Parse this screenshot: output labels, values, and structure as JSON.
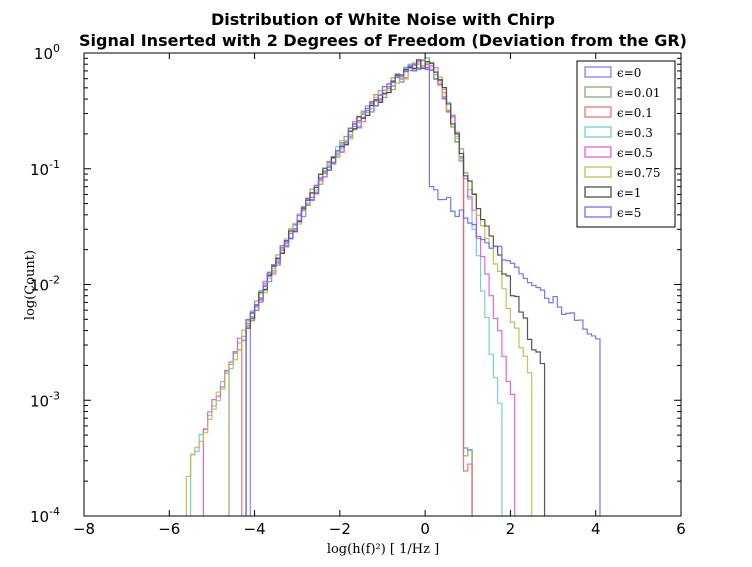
{
  "chart_data": {
    "type": "step",
    "title": [
      "Distribution of White Noise with Chirp",
      "Signal Inserted with 2 Degrees of Freedom (Deviation from the GR)"
    ],
    "xlabel": "log(h(f)²) [ 1/Hz ]",
    "ylabel": "log(Count)",
    "xlim": [
      -8,
      6
    ],
    "ylim": [
      0.0001,
      1
    ],
    "yscale": "log",
    "xticks": [
      "−8",
      "−6",
      "−4",
      "−2",
      "0",
      "2",
      "4",
      "6"
    ],
    "yticks": [
      {
        "base": "10",
        "exp": "0"
      },
      {
        "base": "10",
        "exp": "-1"
      },
      {
        "base": "10",
        "exp": "-2"
      },
      {
        "base": "10",
        "exp": "-3"
      },
      {
        "base": "10",
        "exp": "-4"
      }
    ],
    "legend_position": "top-right",
    "series": [
      {
        "name": "ϵ=0",
        "color": "#7777ee",
        "tail_end": 1.0,
        "tail_min": 0.00035,
        "left_edge": -4.1
      },
      {
        "name": "ϵ=0.01",
        "color": "#77aa66",
        "tail_end": 1.0,
        "tail_min": 0.00035,
        "left_edge": -4.6
      },
      {
        "name": "ϵ=0.1",
        "color": "#ee6666",
        "tail_end": 1.05,
        "tail_min": 0.00025,
        "left_edge": -4.3
      },
      {
        "name": "ϵ=0.3",
        "color": "#66cccc",
        "tail_end": 1.7,
        "tail_min": 0.00085,
        "left_edge": -5.5
      },
      {
        "name": "ϵ=0.5",
        "color": "#dd55dd",
        "tail_end": 2.0,
        "tail_min": 0.00105,
        "left_edge": -5.2
      },
      {
        "name": "ϵ=0.75",
        "color": "#bbbb44",
        "tail_end": 2.4,
        "tail_min": 0.0019,
        "left_edge": -5.6
      },
      {
        "name": "ϵ=1",
        "color": "#444444",
        "tail_end": 2.7,
        "tail_min": 0.002,
        "left_edge": -4.2
      },
      {
        "name": "ϵ=5",
        "color": "#6666ee",
        "tail_end": 4.0,
        "tail_min": 0.0032,
        "left_edge": -4.2
      }
    ]
  }
}
